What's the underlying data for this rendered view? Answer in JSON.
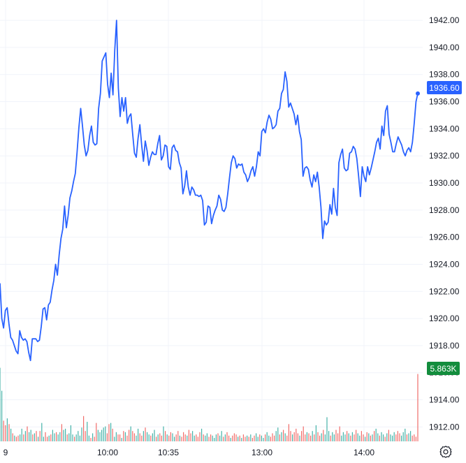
{
  "chart_data": {
    "type": "line",
    "grid": true,
    "y_axis_position": "right",
    "ylim": [
      1909.7,
      1943.5
    ],
    "y_ticks": [
      "1912.00",
      "1914.00",
      "1916.00",
      "1918.00",
      "1920.00",
      "1922.00",
      "1924.00",
      "1926.00",
      "1928.00",
      "1930.00",
      "1932.00",
      "1934.00",
      "1936.00",
      "1938.00",
      "1940.00",
      "1942.00"
    ],
    "x_tick_labels": [
      "9",
      "10:00",
      "10:35",
      "13:00",
      "14:00"
    ],
    "last_price_label": "1936.60",
    "last_volume_label": "5.863K",
    "volume_ylim": [
      0,
      6.5
    ],
    "colors": {
      "line": "#2962ff",
      "price_label_bg": "#2962ff",
      "volume_up": "#26a69a",
      "volume_down": "#ef5350",
      "volume_label_bg": "#138d3d",
      "grid": "#f0f3fa"
    },
    "series": [
      {
        "values": [
          1922.6,
          1920.0,
          1919.3,
          1920.6,
          1920.8,
          1919.6,
          1918.6,
          1918.4,
          1918.0,
          1917.6,
          1917.4,
          1919.1,
          1918.6,
          1918.4,
          1918.5,
          1918.3,
          1917.5,
          1916.9,
          1918.5,
          1918.5,
          1918.5,
          1918.3,
          1918.4,
          1919.4,
          1920.7,
          1920.8,
          1919.9,
          1921.0,
          1921.2,
          1922.1,
          1922.8,
          1924.0,
          1923.2,
          1924.7,
          1925.9,
          1926.6,
          1928.3,
          1926.7,
          1927.6,
          1928.9,
          1929.4,
          1930.1,
          1930.7,
          1932.3,
          1934.1,
          1935.5,
          1934.2,
          1932.8,
          1932.0,
          1932.4,
          1933.5,
          1934.2,
          1933.0,
          1932.8,
          1932.9,
          1935.5,
          1936.6,
          1939.0,
          1939.3,
          1939.6,
          1937.3,
          1936.3,
          1938.1,
          1936.5,
          1939.8,
          1942.0,
          1937.0,
          1934.9,
          1936.3,
          1935.3,
          1936.3,
          1934.4,
          1934.9,
          1935.1,
          1933.6,
          1932.2,
          1931.9,
          1933.3,
          1934.3,
          1932.8,
          1931.6,
          1933.1,
          1932.4,
          1931.3,
          1931.9,
          1932.3,
          1932.1,
          1932.1,
          1932.9,
          1933.5,
          1931.7,
          1932.0,
          1932.8,
          1932.7,
          1931.2,
          1931.0,
          1932.6,
          1932.8,
          1932.4,
          1932.3,
          1931.5,
          1931.1,
          1929.2,
          1929.8,
          1930.9,
          1929.7,
          1929.1,
          1929.7,
          1929.5,
          1929.1,
          1929.1,
          1929.0,
          1929.1,
          1928.7,
          1926.9,
          1927.1,
          1928.3,
          1928.2,
          1927.0,
          1927.6,
          1928.0,
          1928.3,
          1929.1,
          1928.8,
          1928.0,
          1927.9,
          1928.2,
          1929.2,
          1930.4,
          1931.5,
          1932.0,
          1931.8,
          1931.1,
          1931.4,
          1931.3,
          1931.4,
          1930.8,
          1930.6,
          1930.1,
          1930.4,
          1930.9,
          1931.2,
          1930.5,
          1931.2,
          1932.3,
          1932.0,
          1933.8,
          1934.0,
          1933.7,
          1934.5,
          1935.0,
          1934.7,
          1934.0,
          1934.1,
          1934.3,
          1935.3,
          1935.5,
          1936.6,
          1936.9,
          1938.2,
          1937.5,
          1935.6,
          1935.9,
          1935.5,
          1935.1,
          1934.3,
          1935.0,
          1933.8,
          1933.2,
          1930.5,
          1931.1,
          1931.2,
          1931.0,
          1930.2,
          1929.7,
          1930.6,
          1930.1,
          1930.8,
          1929.7,
          1928.2,
          1925.9,
          1927.2,
          1926.9,
          1927.1,
          1928.4,
          1927.7,
          1929.6,
          1928.2,
          1927.6,
          1931.5,
          1932.1,
          1932.5,
          1931.1,
          1930.9,
          1931.0,
          1932.2,
          1932.3,
          1932.7,
          1932.5,
          1931.8,
          1930.5,
          1929.0,
          1931.2,
          1930.5,
          1930.1,
          1931.2,
          1930.6,
          1931.1,
          1931.7,
          1932.3,
          1933.0,
          1933.3,
          1932.5,
          1934.2,
          1933.5,
          1935.3,
          1935.7,
          1933.6,
          1933.0,
          1932.3,
          1932.3,
          1932.9,
          1933.4,
          1933.1,
          1932.8,
          1932.3,
          1932.0,
          1932.4,
          1932.6,
          1932.3,
          1933.0,
          1934.4,
          1936.0,
          1936.6
        ]
      }
    ],
    "volume": [
      6.4,
      4.4,
      1.8,
      1.4,
      2.0,
      1.5,
      1.1,
      0.7,
      0.5,
      0.4,
      0.5,
      0.6,
      1.1,
      0.6,
      0.9,
      1.3,
      0.8,
      1.0,
      0.6,
      0.7,
      0.9,
      0.4,
      0.9,
      1.6,
      0.4,
      0.8,
      0.4,
      0.5,
      0.6,
      1.0,
      0.7,
      0.8,
      0.6,
      0.8,
      1.5,
      1.0,
      1.1,
      0.6,
      0.7,
      1.4,
      0.6,
      0.4,
      0.6,
      0.9,
      0.5,
      1.2,
      2.2,
      0.9,
      1.7,
      0.5,
      0.3,
      0.7,
      0.4,
      1.6,
      1.0,
      0.8,
      1.0,
      1.2,
      1.3,
      0.7,
      1.5,
      1.6,
      1.1,
      0.4,
      0.8,
      0.6,
      0.6,
      0.3,
      0.9,
      0.8,
      0.5,
      1.0,
      1.3,
      0.9,
      0.7,
      0.5,
      1.1,
      0.7,
      0.5,
      0.9,
      1.2,
      0.8,
      0.6,
      0.5,
      0.7,
      1.0,
      0.4,
      0.6,
      0.7,
      0.5,
      1.3,
      0.9,
      0.6,
      0.5,
      0.8,
      0.7,
      0.4,
      0.6,
      0.9,
      0.5,
      0.4,
      0.8,
      0.6,
      0.5,
      1.0,
      0.7,
      0.9,
      0.5,
      0.6,
      0.4,
      0.8,
      1.1,
      0.6,
      0.5,
      0.7,
      0.4,
      0.6,
      0.5,
      0.3,
      0.6,
      0.7,
      0.5,
      0.9,
      0.4,
      0.6,
      0.8,
      0.5,
      0.3,
      0.5,
      0.7,
      0.6,
      0.4,
      0.5,
      0.3,
      0.6,
      0.4,
      0.5,
      0.4,
      0.6,
      0.3,
      0.5,
      0.7,
      0.4,
      0.6,
      0.5,
      0.3,
      0.6,
      0.8,
      0.5,
      0.4,
      0.7,
      0.5,
      0.9,
      1.2,
      0.6,
      0.8,
      1.0,
      0.7,
      0.5,
      1.5,
      0.9,
      0.6,
      0.8,
      1.1,
      0.7,
      0.5,
      0.9,
      1.3,
      0.6,
      0.8,
      0.7,
      0.5,
      0.9,
      0.6,
      1.4,
      0.8,
      0.5,
      0.7,
      1.0,
      0.6,
      2.1,
      0.9,
      0.5,
      0.8,
      0.6,
      1.0,
      0.7,
      1.3,
      0.5,
      0.8,
      0.6,
      0.9,
      0.7,
      0.5,
      0.8,
      0.6,
      1.0,
      0.7,
      0.5,
      0.9,
      0.6,
      0.4,
      0.8,
      0.7,
      0.5,
      0.6,
      0.9,
      1.1,
      0.7,
      0.5,
      0.8,
      0.6,
      0.4,
      0.7,
      1.0,
      0.6,
      0.5,
      0.8,
      0.6,
      0.9,
      0.7,
      0.5,
      0.8,
      1.1,
      0.6,
      0.7,
      0.9,
      0.5,
      0.6,
      0.4,
      5.86
    ],
    "volume_up": [
      1,
      1,
      0,
      0,
      1,
      0,
      1,
      0,
      1,
      0,
      0,
      1,
      1,
      0,
      1,
      0,
      1,
      1,
      0,
      1,
      0,
      1,
      0,
      1,
      1,
      0,
      0,
      1,
      0,
      1,
      1,
      0,
      1,
      1,
      0,
      1,
      1,
      0,
      1,
      1,
      1,
      0,
      1,
      1,
      1,
      1,
      0,
      0,
      1,
      1,
      0,
      1,
      0,
      0,
      1,
      1,
      1,
      1,
      1,
      0,
      0,
      1,
      0,
      1,
      1,
      0,
      0,
      1,
      0,
      1,
      0,
      0,
      1,
      0,
      0,
      1,
      1,
      0,
      0,
      1,
      0,
      1,
      1,
      0,
      1,
      1,
      0,
      1,
      0,
      0,
      1,
      0,
      1,
      0,
      0,
      1,
      1,
      0,
      0,
      1,
      0,
      0,
      0,
      1,
      0,
      0,
      1,
      1,
      0,
      0,
      0,
      1,
      0,
      1,
      1,
      0,
      0,
      1,
      1,
      1,
      0,
      1,
      1,
      0,
      1,
      0,
      0,
      1,
      0,
      0,
      0,
      1,
      0,
      1,
      0,
      0,
      1,
      0,
      1,
      0,
      0,
      1,
      1,
      0,
      1,
      1,
      0,
      1,
      1,
      0,
      0,
      0,
      1,
      1,
      0,
      1,
      0,
      1,
      0,
      0,
      0,
      1,
      0,
      0,
      0,
      1,
      0,
      0,
      0,
      1,
      0,
      0,
      1,
      0,
      1,
      0,
      0,
      1,
      0,
      1,
      1,
      1,
      0,
      1,
      1,
      0,
      0,
      0,
      1,
      1,
      1,
      0,
      1,
      0,
      1,
      0,
      0,
      1,
      1,
      0,
      0,
      1,
      0,
      1,
      0,
      1,
      0,
      1,
      1,
      0,
      1,
      1,
      0,
      1,
      0,
      1,
      1,
      1,
      0,
      0,
      0,
      1,
      1,
      1,
      0,
      1,
      1
    ]
  },
  "toolbar": {
    "settings_icon": "gear-icon"
  }
}
